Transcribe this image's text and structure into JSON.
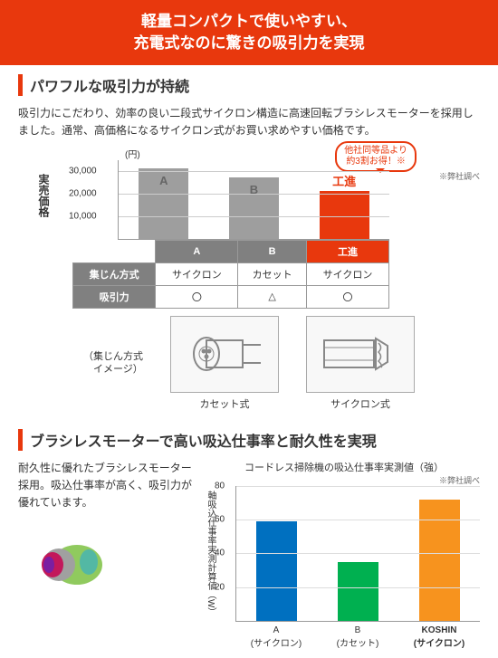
{
  "header": {
    "line1": "軽量コンパクトで使いやすい、",
    "line2": "充電式なのに驚きの吸引力を実現"
  },
  "section1": {
    "title": "パワフルな吸引力が持続",
    "body": "吸引力にこだわり、効率の良い二段式サイクロン構造に高速回転ブラシレスモーターを採用しました。通常、高価格になるサイクロン式がお買い求めやすい価格です。",
    "callout": "他社同等品より\n約3割お得！※",
    "note": "※弊社調べ",
    "yaxis_label": "実売価格",
    "currency": "(円)",
    "chart": {
      "type": "bar",
      "ylim": [
        0,
        35000
      ],
      "yticks": [
        10000,
        20000,
        30000
      ],
      "ytick_labels": [
        "10,000",
        "20,000",
        "30,000"
      ],
      "grid_color": "#cccccc",
      "bars": [
        {
          "label": "A",
          "value": 31000,
          "color": "#9e9e9e",
          "letter_color": "#666666"
        },
        {
          "label": "B",
          "value": 27000,
          "color": "#9e9e9e",
          "letter_color": "#666666"
        },
        {
          "label": "工進",
          "value": 21000,
          "color": "#e8380d",
          "letter_color": "#e8380d",
          "label_above": true
        }
      ]
    },
    "table": {
      "col_headers": [
        "",
        "A",
        "B",
        "工進"
      ],
      "header_colors": [
        "",
        "#808080",
        "#808080",
        "#e8380d"
      ],
      "rows": [
        {
          "label": "集じん方式",
          "cells": [
            "サイクロン",
            "カセット",
            "サイクロン"
          ]
        },
        {
          "label": "吸引力",
          "cells": [
            "〇",
            "△",
            "〇"
          ]
        }
      ]
    },
    "image_row": {
      "side_label": "（集じん方式\n　イメージ）",
      "items": [
        {
          "caption": "カセット式"
        },
        {
          "caption": "サイクロン式"
        }
      ]
    }
  },
  "section2": {
    "title": "ブラシレスモーターで高い吸込仕事率と耐久性を実現",
    "body": "耐久性に優れたブラシレスモーター採用。吸込仕事率が高く、吸引力が優れています。",
    "chart": {
      "type": "bar",
      "title": "コードレス掃除機の吸込仕事率実測値（強）",
      "note": "※弊社調べ",
      "yaxis_label": "軸吸込仕事率実測計算値（W）",
      "ylim": [
        0,
        80
      ],
      "yticks": [
        20,
        40,
        60,
        80
      ],
      "bars": [
        {
          "xlabel": "A\n(サイクロン)",
          "value": 59,
          "color": "#0070c0",
          "bold": false
        },
        {
          "xlabel": "B\n(カセット)",
          "value": 35,
          "color": "#00b050",
          "bold": false
        },
        {
          "xlabel": "KOSHIN\n(サイクロン)",
          "value": 72,
          "color": "#f7931e",
          "bold": true
        }
      ]
    }
  }
}
